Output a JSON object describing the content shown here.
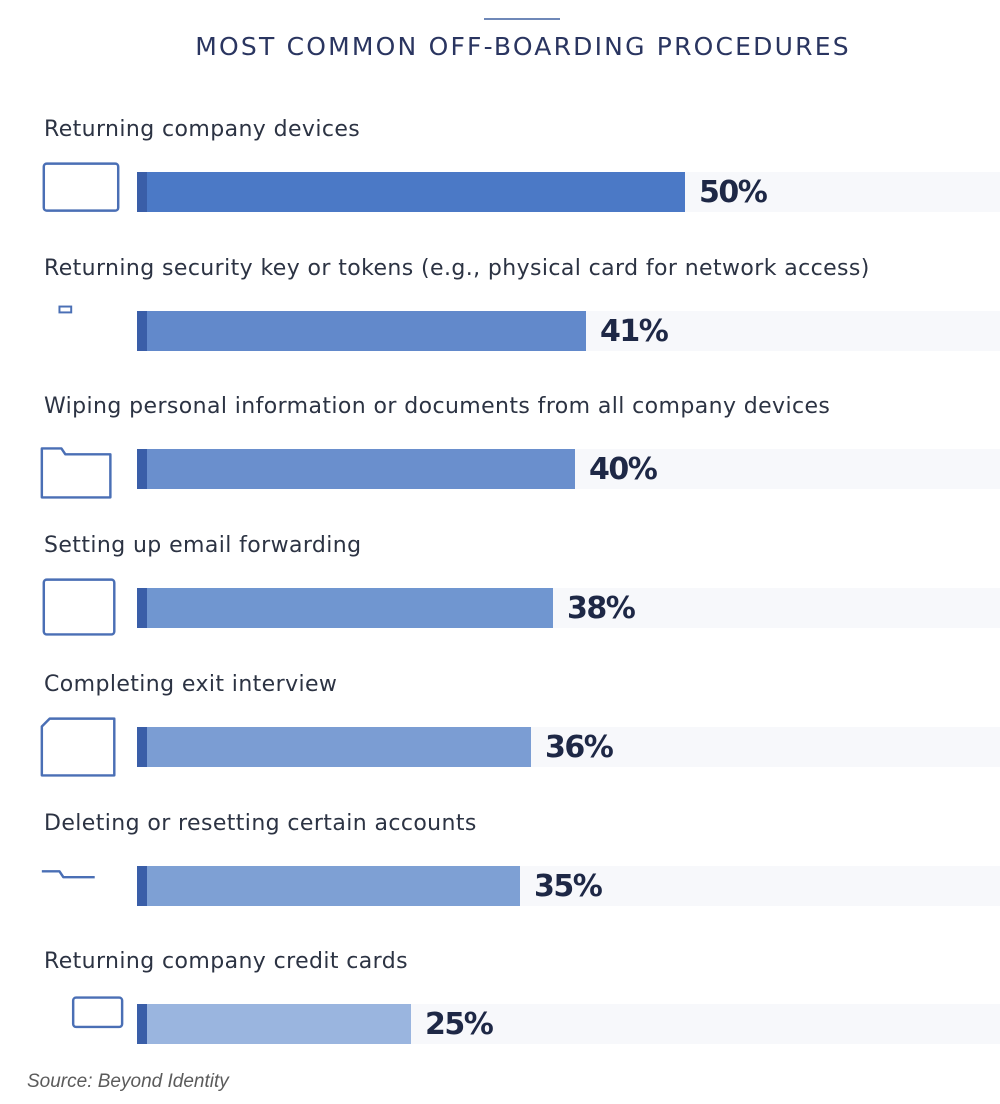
{
  "title": "MOST COMMON OFF-BOARDING PROCEDURES",
  "source": "Source: Beyond Identity",
  "colors": {
    "icon": "#4a6fb5",
    "accent": "#3a5ea8",
    "text": "#2c3343"
  },
  "chart_data": {
    "type": "bar",
    "orientation": "horizontal",
    "title": "MOST COMMON OFF-BOARDING PROCEDURES",
    "xlim": [
      0,
      100
    ],
    "grid": false,
    "categories": [
      "Returning company devices",
      "Returning security key or tokens (e.g., physical card for network access)",
      "Wiping personal information or documents from all company devices",
      "Setting up email forwarding",
      "Completing exit interview",
      "Deleting or resetting certain accounts",
      "Returning company credit cards"
    ],
    "values": [
      50,
      41,
      40,
      38,
      36,
      35,
      25
    ],
    "value_labels": [
      "50%",
      "41%",
      "40%",
      "38%",
      "36%",
      "35%",
      "25%"
    ],
    "bar_colors": [
      "#4b79c6",
      "#6289cb",
      "#6a8fcd",
      "#7096d0",
      "#7b9dd3",
      "#7ea0d4",
      "#9ab5df"
    ],
    "icons": [
      "laptop-icon",
      "id-badge-fingerprint-icon",
      "user-folder-icon",
      "email-window-icon",
      "profile-document-icon",
      "folder-delete-icon",
      "hand-card-icon"
    ]
  }
}
